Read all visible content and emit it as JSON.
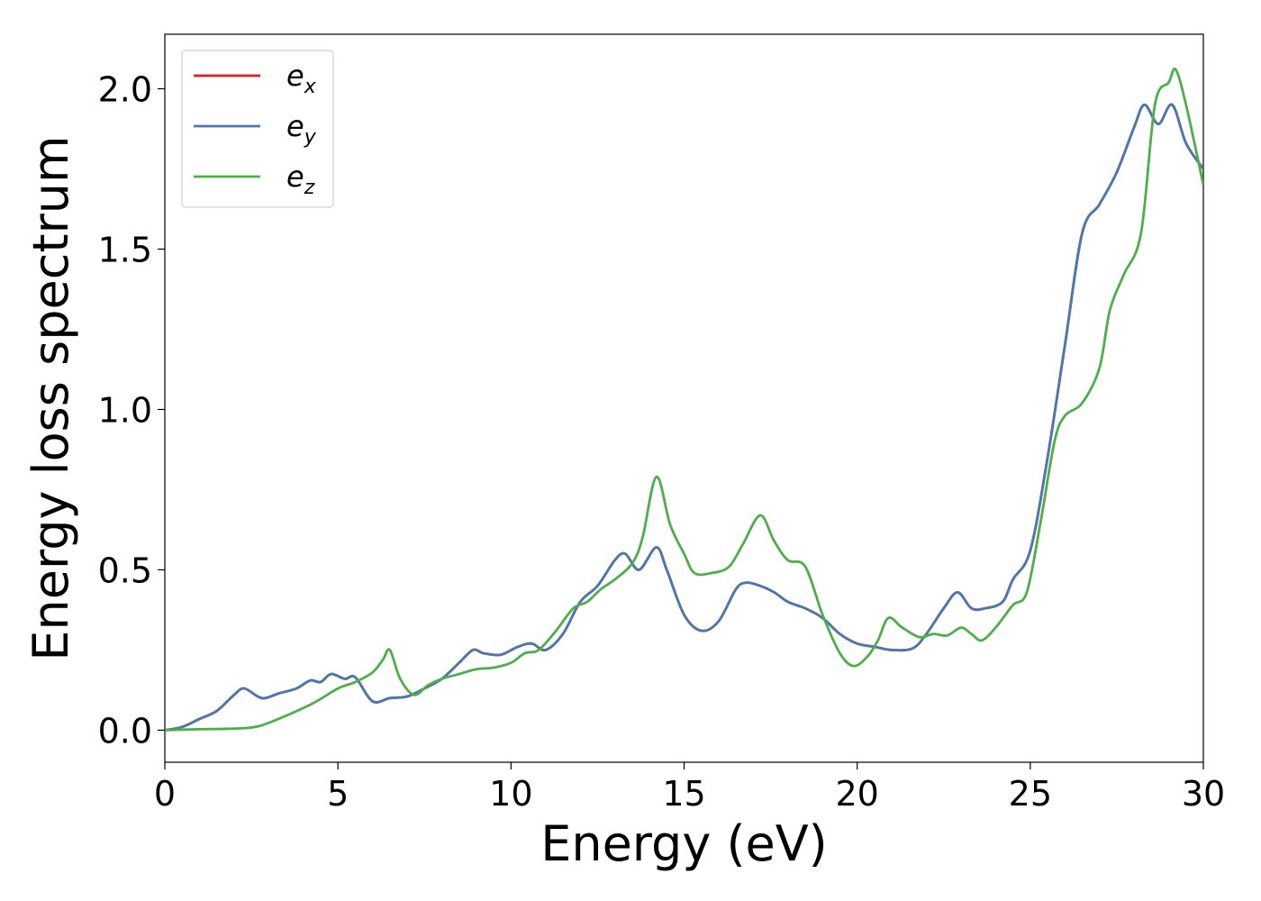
{
  "chart_data": {
    "type": "line",
    "xlabel": "Energy (eV)",
    "ylabel": "Energy loss spectrum",
    "xlim": [
      0,
      30
    ],
    "ylim": [
      -0.1,
      2.17
    ],
    "xticks": [
      "0",
      "5",
      "10",
      "15",
      "20",
      "25",
      "30"
    ],
    "yticks": [
      "0.0",
      "0.5",
      "1.0",
      "1.5",
      "2.0"
    ],
    "grid": false,
    "legend_position": "top-left",
    "series": [
      {
        "name": "e",
        "subscript": "x",
        "color": "#e41a1c",
        "points": [
          [
            0,
            0
          ],
          [
            0.5,
            0.01
          ],
          [
            1,
            0.035
          ],
          [
            1.5,
            0.06
          ],
          [
            2,
            0.11
          ],
          [
            2.3,
            0.13
          ],
          [
            2.8,
            0.1
          ],
          [
            3.3,
            0.115
          ],
          [
            3.8,
            0.13
          ],
          [
            4.2,
            0.155
          ],
          [
            4.5,
            0.15
          ],
          [
            4.8,
            0.175
          ],
          [
            5.2,
            0.16
          ],
          [
            5.5,
            0.165
          ],
          [
            6.0,
            0.09
          ],
          [
            6.5,
            0.1
          ],
          [
            7.0,
            0.105
          ],
          [
            7.5,
            0.13
          ],
          [
            8.0,
            0.16
          ],
          [
            8.5,
            0.21
          ],
          [
            8.9,
            0.25
          ],
          [
            9.2,
            0.24
          ],
          [
            9.7,
            0.235
          ],
          [
            10.2,
            0.26
          ],
          [
            10.6,
            0.27
          ],
          [
            11.0,
            0.25
          ],
          [
            11.5,
            0.3
          ],
          [
            12.0,
            0.4
          ],
          [
            12.5,
            0.45
          ],
          [
            13.0,
            0.53
          ],
          [
            13.3,
            0.55
          ],
          [
            13.7,
            0.5
          ],
          [
            14.2,
            0.57
          ],
          [
            14.5,
            0.5
          ],
          [
            15.0,
            0.36
          ],
          [
            15.5,
            0.31
          ],
          [
            16.0,
            0.34
          ],
          [
            16.5,
            0.44
          ],
          [
            16.8,
            0.46
          ],
          [
            17.2,
            0.45
          ],
          [
            17.6,
            0.43
          ],
          [
            18.0,
            0.4
          ],
          [
            18.5,
            0.38
          ],
          [
            19.0,
            0.35
          ],
          [
            19.5,
            0.3
          ],
          [
            20.0,
            0.27
          ],
          [
            20.5,
            0.26
          ],
          [
            21.0,
            0.25
          ],
          [
            21.6,
            0.255
          ],
          [
            22.0,
            0.3
          ],
          [
            22.5,
            0.38
          ],
          [
            22.9,
            0.43
          ],
          [
            23.3,
            0.38
          ],
          [
            23.7,
            0.38
          ],
          [
            24.2,
            0.4
          ],
          [
            24.5,
            0.47
          ],
          [
            25.0,
            0.56
          ],
          [
            25.5,
            0.85
          ],
          [
            26.0,
            1.2
          ],
          [
            26.5,
            1.55
          ],
          [
            27.0,
            1.64
          ],
          [
            27.5,
            1.74
          ],
          [
            28.0,
            1.88
          ],
          [
            28.3,
            1.95
          ],
          [
            28.7,
            1.89
          ],
          [
            29.1,
            1.95
          ],
          [
            29.5,
            1.83
          ],
          [
            30.0,
            1.75
          ]
        ]
      },
      {
        "name": "e",
        "subscript": "y",
        "color": "#4a78b0",
        "points": [
          [
            0,
            0
          ],
          [
            0.5,
            0.01
          ],
          [
            1,
            0.035
          ],
          [
            1.5,
            0.06
          ],
          [
            2,
            0.11
          ],
          [
            2.3,
            0.13
          ],
          [
            2.8,
            0.1
          ],
          [
            3.3,
            0.115
          ],
          [
            3.8,
            0.13
          ],
          [
            4.2,
            0.155
          ],
          [
            4.5,
            0.15
          ],
          [
            4.8,
            0.175
          ],
          [
            5.2,
            0.16
          ],
          [
            5.5,
            0.165
          ],
          [
            6.0,
            0.09
          ],
          [
            6.5,
            0.1
          ],
          [
            7.0,
            0.105
          ],
          [
            7.5,
            0.13
          ],
          [
            8.0,
            0.16
          ],
          [
            8.5,
            0.21
          ],
          [
            8.9,
            0.25
          ],
          [
            9.2,
            0.24
          ],
          [
            9.7,
            0.235
          ],
          [
            10.2,
            0.26
          ],
          [
            10.6,
            0.27
          ],
          [
            11.0,
            0.25
          ],
          [
            11.5,
            0.3
          ],
          [
            12.0,
            0.4
          ],
          [
            12.5,
            0.45
          ],
          [
            13.0,
            0.53
          ],
          [
            13.3,
            0.55
          ],
          [
            13.7,
            0.5
          ],
          [
            14.2,
            0.57
          ],
          [
            14.5,
            0.5
          ],
          [
            15.0,
            0.36
          ],
          [
            15.5,
            0.31
          ],
          [
            16.0,
            0.34
          ],
          [
            16.5,
            0.44
          ],
          [
            16.8,
            0.46
          ],
          [
            17.2,
            0.45
          ],
          [
            17.6,
            0.43
          ],
          [
            18.0,
            0.4
          ],
          [
            18.5,
            0.38
          ],
          [
            19.0,
            0.35
          ],
          [
            19.5,
            0.3
          ],
          [
            20.0,
            0.27
          ],
          [
            20.5,
            0.26
          ],
          [
            21.0,
            0.25
          ],
          [
            21.6,
            0.255
          ],
          [
            22.0,
            0.3
          ],
          [
            22.5,
            0.38
          ],
          [
            22.9,
            0.43
          ],
          [
            23.3,
            0.38
          ],
          [
            23.7,
            0.38
          ],
          [
            24.2,
            0.4
          ],
          [
            24.5,
            0.47
          ],
          [
            25.0,
            0.56
          ],
          [
            25.5,
            0.85
          ],
          [
            26.0,
            1.2
          ],
          [
            26.5,
            1.55
          ],
          [
            27.0,
            1.64
          ],
          [
            27.5,
            1.74
          ],
          [
            28.0,
            1.88
          ],
          [
            28.3,
            1.95
          ],
          [
            28.7,
            1.89
          ],
          [
            29.1,
            1.95
          ],
          [
            29.5,
            1.83
          ],
          [
            30.0,
            1.75
          ]
        ]
      },
      {
        "name": "e",
        "subscript": "z",
        "color": "#4daf4a",
        "points": [
          [
            0,
            0
          ],
          [
            1,
            0.003
          ],
          [
            2,
            0.005
          ],
          [
            2.7,
            0.012
          ],
          [
            3.5,
            0.045
          ],
          [
            4.3,
            0.085
          ],
          [
            5.0,
            0.13
          ],
          [
            5.5,
            0.15
          ],
          [
            6.0,
            0.18
          ],
          [
            6.3,
            0.22
          ],
          [
            6.5,
            0.25
          ],
          [
            6.8,
            0.16
          ],
          [
            7.2,
            0.11
          ],
          [
            7.6,
            0.14
          ],
          [
            8.0,
            0.16
          ],
          [
            8.5,
            0.175
          ],
          [
            9.0,
            0.19
          ],
          [
            9.5,
            0.195
          ],
          [
            10.0,
            0.21
          ],
          [
            10.4,
            0.24
          ],
          [
            10.8,
            0.25
          ],
          [
            11.3,
            0.31
          ],
          [
            11.8,
            0.38
          ],
          [
            12.2,
            0.4
          ],
          [
            12.6,
            0.44
          ],
          [
            13.0,
            0.47
          ],
          [
            13.5,
            0.52
          ],
          [
            13.8,
            0.6
          ],
          [
            14.2,
            0.79
          ],
          [
            14.6,
            0.64
          ],
          [
            15.0,
            0.55
          ],
          [
            15.3,
            0.49
          ],
          [
            15.8,
            0.49
          ],
          [
            16.3,
            0.51
          ],
          [
            16.7,
            0.58
          ],
          [
            17.2,
            0.67
          ],
          [
            17.6,
            0.59
          ],
          [
            18.0,
            0.53
          ],
          [
            18.5,
            0.51
          ],
          [
            19.0,
            0.36
          ],
          [
            19.5,
            0.24
          ],
          [
            19.9,
            0.2
          ],
          [
            20.3,
            0.23
          ],
          [
            20.6,
            0.28
          ],
          [
            20.9,
            0.35
          ],
          [
            21.3,
            0.32
          ],
          [
            21.8,
            0.29
          ],
          [
            22.2,
            0.3
          ],
          [
            22.6,
            0.295
          ],
          [
            23.0,
            0.32
          ],
          [
            23.3,
            0.3
          ],
          [
            23.6,
            0.28
          ],
          [
            24.0,
            0.32
          ],
          [
            24.5,
            0.39
          ],
          [
            24.9,
            0.43
          ],
          [
            25.3,
            0.65
          ],
          [
            25.7,
            0.9
          ],
          [
            26.0,
            0.98
          ],
          [
            26.5,
            1.02
          ],
          [
            27.0,
            1.13
          ],
          [
            27.3,
            1.31
          ],
          [
            27.7,
            1.42
          ],
          [
            28.2,
            1.55
          ],
          [
            28.6,
            1.95
          ],
          [
            29.0,
            2.02
          ],
          [
            29.2,
            2.06
          ],
          [
            29.5,
            1.95
          ],
          [
            30.0,
            1.7
          ]
        ]
      }
    ]
  }
}
